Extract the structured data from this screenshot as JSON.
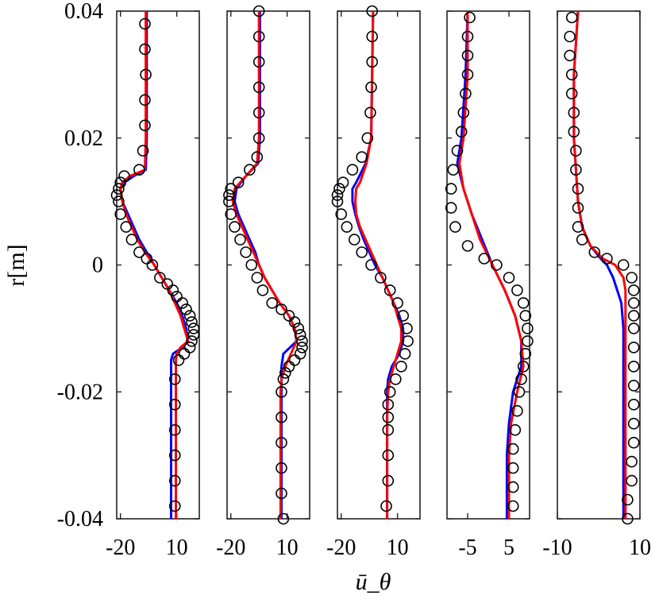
{
  "chart_data": {
    "type": "line",
    "ylabel": "r[m]",
    "xlabel": "ū_θ",
    "ylim": [
      -0.04,
      0.04
    ],
    "yticks": [
      {
        "value": 0.04,
        "label": "0.04"
      },
      {
        "value": 0.02,
        "label": "0.02"
      },
      {
        "value": 0,
        "label": "0"
      },
      {
        "value": -0.02,
        "label": "-0.02"
      },
      {
        "value": -0.04,
        "label": "-0.04"
      }
    ],
    "panels": [
      {
        "xlim": [
          -22,
          22
        ],
        "xticks": [
          {
            "value": -20,
            "label": "-20"
          },
          {
            "value": 10,
            "label": "10"
          }
        ],
        "markers": {
          "r": [
            0.038,
            0.034,
            0.03,
            0.026,
            0.022,
            0.018,
            0.015,
            0.014,
            0.013,
            0.012,
            0.011,
            0.01,
            0.008,
            0.006,
            0.004,
            0.002,
            0.001,
            0.0,
            -0.002,
            -0.003,
            -0.004,
            -0.005,
            -0.006,
            -0.007,
            -0.008,
            -0.009,
            -0.01,
            -0.011,
            -0.012,
            -0.013,
            -0.014,
            -0.015,
            -0.018,
            -0.022,
            -0.026,
            -0.03,
            -0.034,
            -0.038
          ],
          "u": [
            -7,
            -7,
            -6.5,
            -7,
            -7,
            -8,
            -10,
            -18,
            -20,
            -21,
            -22,
            -21,
            -20,
            -17,
            -14,
            -10,
            -6,
            -3,
            1,
            5,
            8,
            10,
            13,
            15,
            17,
            18,
            19,
            19,
            18,
            17,
            14,
            11,
            9,
            9,
            9,
            9,
            9,
            9
          ]
        },
        "red": {
          "r": [
            0.04,
            0.03,
            0.02,
            0.015,
            0.014,
            0.013,
            0.012,
            0.01,
            0.008,
            0.006,
            0.004,
            0.002,
            0.0,
            -0.002,
            -0.004,
            -0.006,
            -0.008,
            -0.01,
            -0.012,
            -0.013,
            -0.014,
            -0.015,
            -0.02,
            -0.03,
            -0.04
          ],
          "u": [
            -6.5,
            -6.5,
            -6.5,
            -7,
            -15,
            -19,
            -20,
            -19,
            -17,
            -14,
            -11,
            -7,
            -2,
            2,
            6,
            9,
            12,
            14,
            16,
            12,
            10,
            9.5,
            9.5,
            9.5,
            9.5
          ]
        },
        "blue": {
          "r": [
            0.04,
            0.03,
            0.02,
            0.015,
            0.014,
            0.013,
            0.012,
            0.01,
            0.008,
            0.006,
            0.004,
            0.002,
            0.0,
            -0.002,
            -0.004,
            -0.006,
            -0.008,
            -0.01,
            -0.012,
            -0.013,
            -0.014,
            -0.015,
            -0.02,
            -0.03,
            -0.04
          ],
          "u": [
            -6,
            -6,
            -6,
            -6.5,
            -13,
            -18,
            -20,
            -19,
            -16,
            -13,
            -10,
            -6,
            -2,
            2,
            6,
            10,
            13,
            15,
            16,
            13,
            8,
            7,
            7,
            7,
            7
          ]
        }
      },
      {
        "xlim": [
          -22,
          22
        ],
        "xticks": [
          {
            "value": -20,
            "label": "-20"
          },
          {
            "value": 10,
            "label": "10"
          }
        ],
        "markers": {
          "r": [
            0.04,
            0.036,
            0.032,
            0.028,
            0.024,
            0.02,
            0.017,
            0.015,
            0.013,
            0.012,
            0.011,
            0.01,
            0.008,
            0.006,
            0.004,
            0.002,
            0.0,
            -0.002,
            -0.004,
            -0.006,
            -0.007,
            -0.008,
            -0.009,
            -0.01,
            -0.011,
            -0.012,
            -0.013,
            -0.014,
            -0.015,
            -0.016,
            -0.017,
            -0.018,
            -0.02,
            -0.024,
            -0.028,
            -0.032,
            -0.036,
            -0.04
          ],
          "u": [
            -5,
            -5,
            -5,
            -5,
            -5,
            -5,
            -6,
            -10,
            -16,
            -20,
            -21,
            -21,
            -20,
            -18,
            -15,
            -12,
            -9,
            -6,
            -3,
            2,
            7,
            11,
            14,
            16,
            17,
            18,
            18,
            17,
            14,
            11,
            9,
            8,
            7,
            7,
            7,
            7,
            7,
            8
          ]
        },
        "red": {
          "r": [
            0.04,
            0.03,
            0.02,
            0.016,
            0.014,
            0.012,
            0.01,
            0.008,
            0.006,
            0.004,
            0.002,
            0.0,
            -0.002,
            -0.004,
            -0.006,
            -0.008,
            -0.01,
            -0.012,
            -0.014,
            -0.016,
            -0.018,
            -0.02,
            -0.03,
            -0.04
          ],
          "u": [
            -5,
            -5,
            -5,
            -6,
            -12,
            -18,
            -19,
            -17,
            -14,
            -11,
            -8,
            -5,
            -2,
            2,
            6,
            11,
            14,
            15,
            12,
            9,
            7,
            6.5,
            6.5,
            6.5
          ]
        },
        "blue": {
          "r": [
            0.04,
            0.03,
            0.02,
            0.016,
            0.014,
            0.012,
            0.01,
            0.008,
            0.006,
            0.004,
            0.002,
            0.0,
            -0.002,
            -0.004,
            -0.006,
            -0.008,
            -0.01,
            -0.012,
            -0.014,
            -0.016,
            -0.018,
            -0.02,
            -0.03,
            -0.04
          ],
          "u": [
            -4.5,
            -4.5,
            -4.5,
            -5.5,
            -12,
            -17,
            -18,
            -16,
            -13,
            -10,
            -7,
            -5,
            -2,
            2,
            6,
            11,
            14,
            15,
            8,
            7,
            7,
            7,
            7,
            7
          ]
        }
      },
      {
        "xlim": [
          -22,
          22
        ],
        "xticks": [
          {
            "value": -20,
            "label": "-20"
          },
          {
            "value": 10,
            "label": "10"
          }
        ],
        "markers": {
          "r": [
            0.04,
            0.036,
            0.032,
            0.028,
            0.024,
            0.02,
            0.017,
            0.015,
            0.013,
            0.012,
            0.011,
            0.01,
            0.008,
            0.006,
            0.004,
            0.002,
            0.0,
            -0.002,
            -0.004,
            -0.006,
            -0.008,
            -0.01,
            -0.012,
            -0.014,
            -0.016,
            -0.018,
            -0.02,
            -0.022,
            -0.024,
            -0.026,
            -0.03,
            -0.034,
            -0.038
          ],
          "u": [
            -3.5,
            -3.5,
            -3.5,
            -4,
            -4.5,
            -6,
            -9,
            -14,
            -19,
            -21,
            -22,
            -22,
            -20,
            -17,
            -13,
            -9,
            -4,
            1,
            6,
            10,
            13,
            15,
            15.5,
            14,
            12,
            9,
            6,
            5,
            5,
            5,
            5,
            5,
            4
          ]
        },
        "red": {
          "r": [
            0.04,
            0.03,
            0.02,
            0.016,
            0.013,
            0.012,
            0.01,
            0.008,
            0.006,
            0.004,
            0.002,
            0.0,
            -0.002,
            -0.004,
            -0.006,
            -0.008,
            -0.01,
            -0.012,
            -0.014,
            -0.016,
            -0.018,
            -0.02,
            -0.024,
            -0.03,
            -0.04
          ],
          "u": [
            -3,
            -3.5,
            -4,
            -6.5,
            -10,
            -12,
            -12.5,
            -12,
            -10,
            -7,
            -4,
            -1,
            2,
            5,
            8,
            10,
            12,
            12,
            10,
            8,
            6,
            5,
            4.5,
            4.5,
            4.5
          ]
        },
        "blue": {
          "r": [
            0.04,
            0.03,
            0.02,
            0.016,
            0.013,
            0.012,
            0.01,
            0.008,
            0.006,
            0.004,
            0.002,
            0.0,
            -0.002,
            -0.004,
            -0.006,
            -0.008,
            -0.01,
            -0.012,
            -0.014,
            -0.016,
            -0.018,
            -0.02,
            -0.024,
            -0.03,
            -0.04
          ],
          "u": [
            -3,
            -3.5,
            -4,
            -7,
            -12,
            -14,
            -14,
            -12.5,
            -10.5,
            -8,
            -5,
            -2,
            2,
            5,
            8,
            11,
            13,
            13,
            11,
            7,
            5,
            4.5,
            4.5,
            4.5,
            4.5
          ]
        }
      },
      {
        "xlim": [
          -10,
          10
        ],
        "xticks": [
          {
            "value": -5,
            "label": "-5"
          },
          {
            "value": 5,
            "label": "5"
          }
        ],
        "markers": {
          "r": [
            0.039,
            0.036,
            0.033,
            0.03,
            0.027,
            0.024,
            0.021,
            0.018,
            0.015,
            0.012,
            0.009,
            0.006,
            0.003,
            0.001,
            0.0,
            -0.002,
            -0.004,
            -0.006,
            -0.008,
            -0.01,
            -0.012,
            -0.014,
            -0.016,
            -0.018,
            -0.02,
            -0.023,
            -0.026,
            -0.029,
            -0.032,
            -0.035,
            -0.038
          ],
          "u": [
            -4.5,
            -5,
            -5,
            -5,
            -5.5,
            -6,
            -6.5,
            -7.5,
            -8.5,
            -9,
            -9,
            -8,
            -5,
            -1,
            2,
            5,
            7,
            8.5,
            9,
            9.5,
            9.5,
            9,
            8.5,
            8,
            7.5,
            7,
            6.5,
            6,
            6,
            6,
            6
          ]
        },
        "red": {
          "r": [
            0.04,
            0.03,
            0.02,
            0.016,
            0.012,
            0.008,
            0.004,
            0.0,
            -0.004,
            -0.008,
            -0.012,
            -0.016,
            -0.02,
            -0.025,
            -0.03,
            -0.04
          ],
          "u": [
            -5,
            -5,
            -6,
            -7,
            -6,
            -4,
            -2,
            1,
            4,
            6.5,
            8,
            8.5,
            7,
            5.5,
            5,
            5
          ]
        },
        "blue": {
          "r": [
            0.04,
            0.03,
            0.02,
            0.016,
            0.012,
            0.008,
            0.004,
            0.0,
            -0.004,
            -0.008,
            -0.012,
            -0.016,
            -0.02,
            -0.025,
            -0.03,
            -0.04
          ],
          "u": [
            -5,
            -5.5,
            -6.5,
            -7.5,
            -6,
            -4,
            -1.5,
            1,
            4,
            6.5,
            8,
            8,
            6,
            5,
            4.5,
            4.5
          ]
        },
        "black_dashed": {
          "r": [
            0.04,
            0.03,
            0.02,
            0.016,
            0.012,
            0.008,
            0.004,
            0.0,
            -0.004,
            -0.008,
            -0.012,
            -0.016,
            -0.02,
            -0.025,
            -0.03,
            -0.04
          ],
          "u": [
            -5,
            -5.5,
            -6.5,
            -7.5,
            -6,
            -4,
            -1.5,
            1,
            4,
            6.5,
            8,
            8,
            6,
            5,
            4.5,
            4.5
          ]
        }
      },
      {
        "xlim": [
          -10,
          10
        ],
        "xticks": [
          {
            "value": -10,
            "label": "-10"
          },
          {
            "value": 10,
            "label": "10"
          }
        ],
        "markers": {
          "r": [
            0.039,
            0.036,
            0.033,
            0.03,
            0.027,
            0.024,
            0.021,
            0.018,
            0.015,
            0.012,
            0.009,
            0.006,
            0.004,
            0.002,
            0.001,
            0.0,
            -0.002,
            -0.004,
            -0.006,
            -0.008,
            -0.01,
            -0.013,
            -0.016,
            -0.019,
            -0.022,
            -0.025,
            -0.028,
            -0.031,
            -0.034,
            -0.037,
            -0.04
          ],
          "u": [
            -6.5,
            -7,
            -7,
            -6.5,
            -6.5,
            -6,
            -6,
            -5.5,
            -5.5,
            -5,
            -5,
            -5,
            -4,
            -1,
            2,
            6,
            8,
            8.5,
            8.5,
            8.5,
            8.5,
            8.5,
            8.5,
            8.5,
            8.5,
            8.5,
            8.5,
            8,
            8,
            7,
            7
          ]
        },
        "red": {
          "r": [
            0.04,
            0.03,
            0.02,
            0.015,
            0.01,
            0.006,
            0.003,
            0.001,
            0.0,
            -0.002,
            -0.004,
            -0.006,
            -0.01,
            -0.02,
            -0.03,
            -0.04
          ],
          "u": [
            -5,
            -6,
            -6,
            -5.5,
            -5,
            -4,
            -2,
            1,
            4,
            6,
            6.5,
            6.5,
            6.5,
            6.5,
            6.5,
            6.5
          ]
        },
        "blue": {
          "r": [
            0.04,
            0.03,
            0.02,
            0.015,
            0.01,
            0.006,
            0.003,
            0.001,
            0.0,
            -0.002,
            -0.004,
            -0.006,
            -0.01,
            -0.02,
            -0.03,
            -0.04
          ],
          "u": [
            -5,
            -6,
            -6,
            -5.5,
            -5,
            -4,
            -2,
            0.5,
            2,
            3.5,
            4.5,
            5.5,
            6,
            6,
            6,
            6
          ]
        },
        "black_dashed": {
          "r": [
            0.04,
            0.03,
            0.02,
            0.015,
            0.01,
            0.006,
            0.003,
            0.001,
            0.0,
            -0.002,
            -0.004,
            -0.006,
            -0.01,
            -0.02,
            -0.03,
            -0.04
          ],
          "u": [
            -5,
            -6,
            -6,
            -5.5,
            -5,
            -4,
            -2,
            0.5,
            2,
            3.5,
            4.5,
            5.5,
            6,
            6,
            6,
            6
          ]
        }
      }
    ],
    "series_colors": {
      "markers": "#000000",
      "red": "#ff0000",
      "blue": "#0000ff",
      "black_dashed": "#000000"
    }
  }
}
